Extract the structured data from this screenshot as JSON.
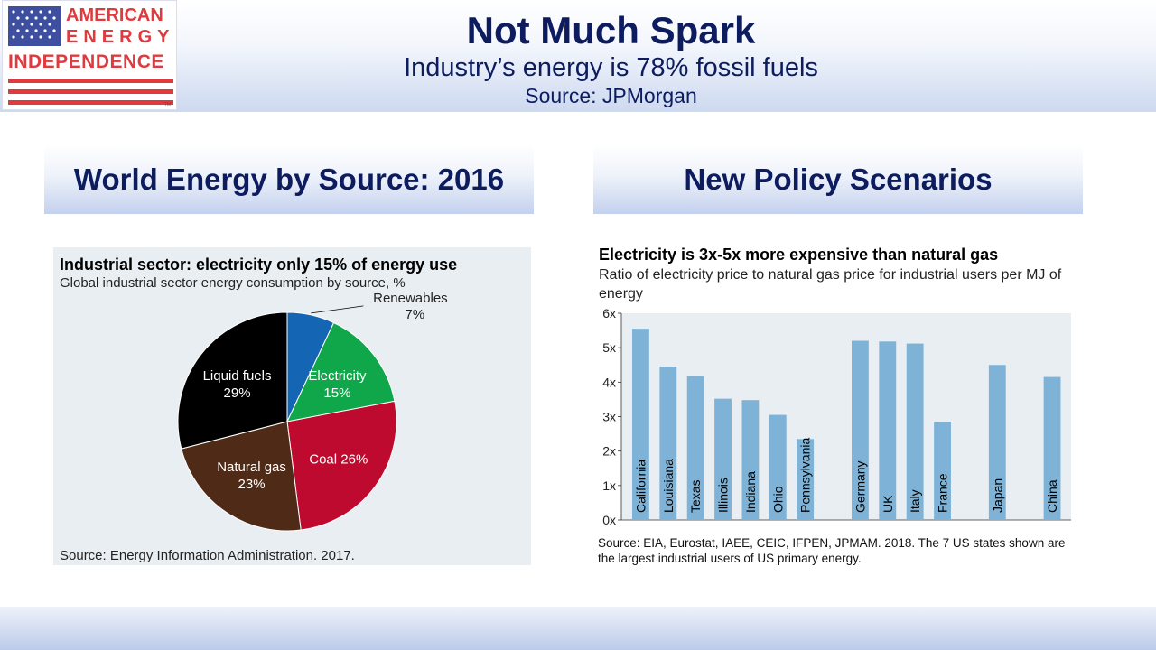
{
  "header": {
    "title": "Not Much Spark",
    "subtitle": "Industry’s energy is 78% fossil fuels",
    "source": "Source: JPMorgan"
  },
  "logo": {
    "line1": "AMERICAN",
    "line2": "ENERGY",
    "line3": "INDEPENDENCE",
    "tm": "TM"
  },
  "colors": {
    "navy": "#0c1c5e",
    "red": "#e03a3e",
    "bar": "#7eb2d6"
  },
  "left_panel": {
    "heading": "World Energy by Source: 2016"
  },
  "right_panel": {
    "heading": "New Policy Scenarios"
  },
  "pie_chart": {
    "title": "Industrial sector: electricity only 15% of energy use",
    "subtitle": "Global industrial sector energy consumption by source, %",
    "source": "Source: Energy Information Administration. 2017."
  },
  "bar_chart": {
    "title": "Electricity is 3x-5x more expensive than natural gas",
    "subtitle": "Ratio of electricity price to natural gas price for industrial users per MJ of energy",
    "source": "Source: EIA, Eurostat, IAEE, CEIC, IFPEN, JPMAM. 2018.  The 7 US states shown are the largest industrial users of US primary energy."
  },
  "chart_data": [
    {
      "type": "pie",
      "title": "Industrial sector: electricity only 15% of energy use",
      "slices": [
        {
          "label": "Renewables",
          "value": 7,
          "value_label": "7%",
          "color": "#1565b5",
          "label_outside": true
        },
        {
          "label": "Electricity",
          "value": 15,
          "value_label": "15%",
          "color": "#10a64a",
          "label_outside": false
        },
        {
          "label": "Coal",
          "value": 26,
          "value_label": "Coal 26%",
          "color": "#bf0a30",
          "label_outside": false
        },
        {
          "label": "Natural gas",
          "value": 23,
          "value_label": "23%",
          "color": "#4e2a17",
          "label_outside": false
        },
        {
          "label": "Liquid fuels",
          "value": 29,
          "value_label": "29%",
          "color": "#000000",
          "label_outside": false
        }
      ]
    },
    {
      "type": "bar",
      "title": "Electricity is 3x-5x more expensive than natural gas",
      "ylim": [
        0,
        6
      ],
      "yticks": [
        "0x",
        "1x",
        "2x",
        "3x",
        "4x",
        "5x",
        "6x"
      ],
      "categories": [
        "California",
        "Louisiana",
        "Texas",
        "Illinois",
        "Indiana",
        "Ohio",
        "Pennsylvania",
        "",
        "Germany",
        "UK",
        "Italy",
        "France",
        "",
        "Japan",
        "",
        "China"
      ],
      "values": [
        5.55,
        4.45,
        4.18,
        3.52,
        3.48,
        3.05,
        2.35,
        null,
        5.2,
        5.18,
        5.12,
        2.85,
        null,
        4.5,
        null,
        4.15
      ]
    }
  ]
}
